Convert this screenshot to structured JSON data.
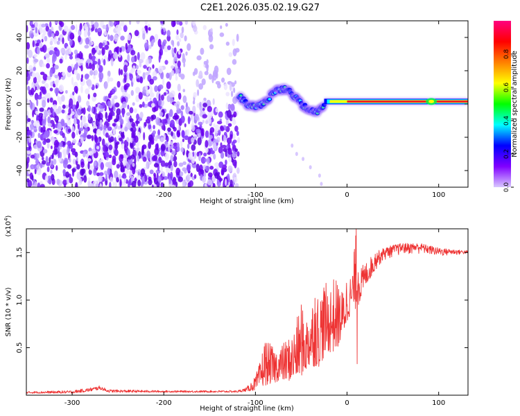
{
  "figure_title": "C2E1.2026.035.02.19.G27",
  "chart_data": [
    {
      "type": "heatmap",
      "title": "C2E1.2026.035.02.19.G27",
      "xlabel": "Height of straight line (km)",
      "ylabel": "Frequency (Hz)",
      "xlim": [
        -350,
        132
      ],
      "ylim": [
        -50,
        50
      ],
      "x_ticks": [
        -300,
        -200,
        -100,
        0,
        100
      ],
      "y_ticks": [
        -40,
        -20,
        0,
        20,
        40
      ],
      "colorbar": {
        "label": "Normalized spectral amplitude",
        "range": [
          0,
          1
        ],
        "ticks": [
          "0.0",
          "0.2",
          "0.4",
          "0.6",
          "0.8"
        ],
        "tick_values": [
          0.0,
          0.2,
          0.4,
          0.6,
          0.8
        ],
        "colors": [
          "#d9c8ff",
          "#8000ff",
          "#0000ff",
          "#00ffff",
          "#00ff00",
          "#ffff00",
          "#ff8000",
          "#ff0000",
          "#ff0080"
        ]
      },
      "features": {
        "noise_region_x": [
          -350,
          -118
        ],
        "noise_top_dense_x": [
          -350,
          -180
        ],
        "transition_x": [
          -118,
          -25
        ],
        "trail_points": [
          [
            -60,
            -25
          ],
          [
            -55,
            -30
          ],
          [
            -48,
            -33
          ],
          [
            -40,
            -38
          ],
          [
            -30,
            -43
          ],
          [
            -28,
            -48
          ]
        ],
        "tone_x": [
          -25,
          132
        ],
        "tone_freq_hz": 1.5
      }
    },
    {
      "type": "line",
      "xlabel": "Height of straight line (km)",
      "ylabel": "SNR (10 * v/v)",
      "y_multiplier": "(x10",
      "y_multiplier_exp": "4",
      "y_multiplier_close": ")",
      "xlim": [
        -350,
        132
      ],
      "ylim": [
        0,
        1.75
      ],
      "x_ticks": [
        -300,
        -200,
        -100,
        0,
        100
      ],
      "y_ticks": [
        0.5,
        1.0,
        1.5
      ],
      "y_tick_labels": [
        "0.5",
        "1.0",
        "1.5"
      ],
      "series": [
        {
          "name": "SNR",
          "color": "#ee3333",
          "envelope_x": [
            -350,
            -300,
            -280,
            -270,
            -260,
            -200,
            -120,
            -110,
            -100,
            -95,
            -90,
            -85,
            -80,
            -75,
            -70,
            -60,
            -50,
            -45,
            -40,
            -30,
            -25,
            -20,
            -15,
            -10,
            -5,
            0,
            5,
            10,
            15,
            20,
            30,
            40,
            50,
            60,
            80,
            100,
            120,
            132
          ],
          "envelope_low": [
            0.02,
            0.02,
            0.04,
            0.06,
            0.03,
            0.03,
            0.03,
            0.04,
            0.05,
            0.08,
            0.1,
            0.12,
            0.12,
            0.15,
            0.15,
            0.15,
            0.2,
            0.25,
            0.3,
            0.3,
            0.4,
            0.45,
            0.45,
            0.5,
            0.6,
            0.75,
            0.9,
            0.9,
            1.0,
            1.15,
            1.3,
            1.4,
            1.45,
            1.47,
            1.48,
            1.45,
            1.47,
            1.48
          ],
          "envelope_high": [
            0.04,
            0.05,
            0.08,
            0.1,
            0.06,
            0.05,
            0.05,
            0.08,
            0.2,
            0.35,
            0.6,
            0.55,
            0.5,
            0.5,
            0.55,
            0.65,
            0.95,
            0.8,
            1.02,
            1.1,
            1.2,
            1.15,
            1.25,
            1.2,
            1.1,
            1.3,
            1.25,
            1.75,
            1.35,
            1.4,
            1.5,
            1.55,
            1.58,
            1.6,
            1.6,
            1.55,
            1.53,
            1.52
          ],
          "spikes": [
            [
              10,
              1.75
            ],
            [
              11,
              0.33
            ],
            [
              8,
              1.5
            ],
            [
              -35,
              1.02
            ],
            [
              -50,
              0.95
            ]
          ]
        }
      ]
    }
  ]
}
